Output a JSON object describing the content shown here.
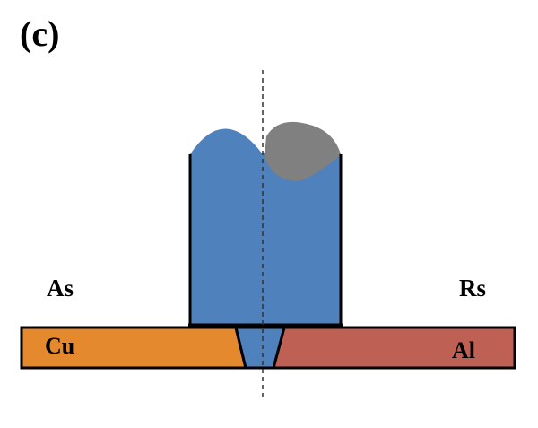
{
  "figure": {
    "panel_label": "(c)",
    "advancing_side_label": "As",
    "retreating_side_label": "Rs",
    "left_material_label": "Cu",
    "right_material_label": "Al"
  },
  "colors": {
    "tool": "#4f81bd",
    "copper": "#e4892e",
    "aluminum": "#bf6055",
    "gray_region": "#808080",
    "outline": "#000000",
    "centerline": "#333333"
  }
}
